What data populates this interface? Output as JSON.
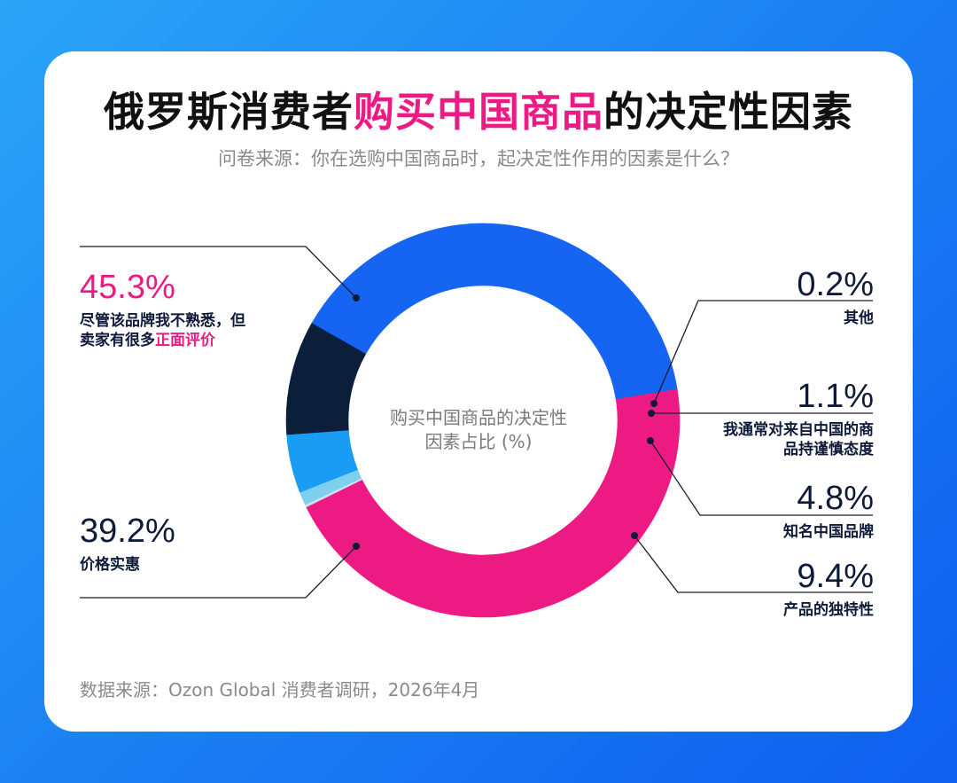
{
  "title": {
    "part1": "俄罗斯消费者",
    "highlight": "购买中国商品",
    "part2": "的决定性因素"
  },
  "subtitle": "问卷来源：你在选购中国商品时，起决定性作用的因素是什么？",
  "footer": "数据来源：Ozon Global 消费者调研，2026年4月",
  "colors": {
    "pink": "#ee1a84",
    "blue": "#1565f2",
    "navy": "#0b1e3a",
    "sky": "#1a9cf5",
    "light": "#7fd0ee",
    "pale": "#c9e6f5"
  },
  "chart_data": {
    "type": "pie",
    "style": "donut",
    "center_label": {
      "line1": "购买中国商品的决定性",
      "line2": "因素占比 (%)"
    },
    "slices": [
      {
        "label_line1": "尽管该品牌我不熟悉，但",
        "label_line2_prefix": "卖家有很多",
        "label_line2_highlight": "正面评价",
        "value": 45.3,
        "pct_text": "45.3%",
        "color": "#ee1a84"
      },
      {
        "label": "其他",
        "value": 0.2,
        "pct_text": "0.2%",
        "color": "#c9e6f5"
      },
      {
        "label_line1": "我通常对来自中国的商",
        "label_line2": "品持谨慎态度",
        "value": 1.1,
        "pct_text": "1.1%",
        "color": "#7fd0ee"
      },
      {
        "label": "知名中国品牌",
        "value": 4.8,
        "pct_text": "4.8%",
        "color": "#1a9cf5"
      },
      {
        "label": "产品的独特性",
        "value": 9.4,
        "pct_text": "9.4%",
        "color": "#0b1e3a"
      },
      {
        "label": "价格实惠",
        "value": 39.2,
        "pct_text": "39.2%",
        "color": "#1565f2"
      }
    ]
  }
}
